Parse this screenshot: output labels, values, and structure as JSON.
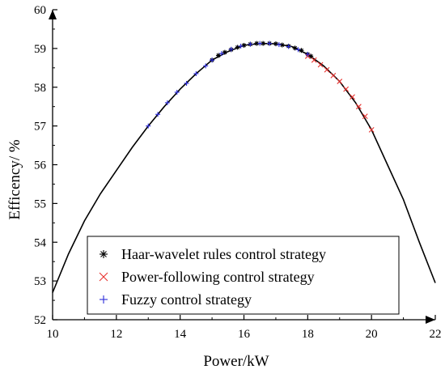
{
  "chart_data": {
    "type": "scatter",
    "title": "",
    "xlabel": "Power/kW",
    "ylabel": "Efficency/ %",
    "xlim": [
      10,
      22
    ],
    "ylim": [
      52,
      60
    ],
    "xticks": [
      "10",
      "12",
      "14",
      "16",
      "18",
      "20",
      "22"
    ],
    "yticks": [
      "52",
      "53",
      "54",
      "55",
      "56",
      "57",
      "58",
      "59",
      "60"
    ],
    "grid": false,
    "legend_position": "bottom-center",
    "efficiency_curve": {
      "x": [
        10.0,
        10.5,
        11.0,
        11.5,
        12.0,
        12.5,
        13.0,
        13.5,
        14.0,
        14.5,
        15.0,
        15.5,
        16.0,
        16.5,
        17.0,
        17.5,
        18.0,
        18.5,
        19.0,
        19.5,
        20.0,
        20.5,
        21.0,
        21.5,
        22.0
      ],
      "y": [
        52.7,
        53.7,
        54.55,
        55.25,
        55.85,
        56.45,
        57.0,
        57.5,
        57.95,
        58.35,
        58.7,
        58.92,
        59.08,
        59.13,
        59.12,
        59.05,
        58.85,
        58.55,
        58.15,
        57.6,
        56.9,
        56.0,
        55.1,
        54.0,
        52.95
      ],
      "color": "#000000"
    },
    "series": [
      {
        "name": "Haar-wavelet rules control strategy",
        "marker": "asterisk",
        "color": "#000000",
        "x": [
          15.0,
          15.2,
          15.4,
          15.6,
          15.8,
          16.0,
          16.2,
          16.4,
          16.6,
          16.8,
          17.0,
          17.2,
          17.4,
          17.6,
          17.8,
          18.0,
          18.1
        ],
        "y": [
          58.7,
          58.82,
          58.9,
          58.97,
          59.03,
          59.08,
          59.11,
          59.13,
          59.13,
          59.13,
          59.12,
          59.09,
          59.06,
          59.01,
          58.95,
          58.85,
          58.8
        ]
      },
      {
        "name": "Power-following control strategy",
        "marker": "x",
        "color": "#e8312e",
        "x": [
          18.0,
          18.2,
          18.4,
          18.6,
          18.8,
          19.0,
          19.2,
          19.4,
          19.6,
          19.8,
          20.0
        ],
        "y": [
          58.8,
          58.7,
          58.58,
          58.45,
          58.3,
          58.15,
          57.95,
          57.75,
          57.5,
          57.25,
          56.9
        ]
      },
      {
        "name": "Fuzzy control strategy",
        "marker": "plus",
        "color": "#2b2bd9",
        "x": [
          13.0,
          13.3,
          13.6,
          13.9,
          14.2,
          14.5,
          14.8,
          15.0,
          15.3,
          15.6,
          15.9,
          16.2,
          16.5,
          16.8,
          17.1,
          17.4,
          17.7,
          18.0
        ],
        "y": [
          57.0,
          57.3,
          57.6,
          57.87,
          58.1,
          58.35,
          58.55,
          58.7,
          58.87,
          58.98,
          59.06,
          59.11,
          59.13,
          59.13,
          59.1,
          59.05,
          58.97,
          58.85
        ]
      }
    ]
  }
}
